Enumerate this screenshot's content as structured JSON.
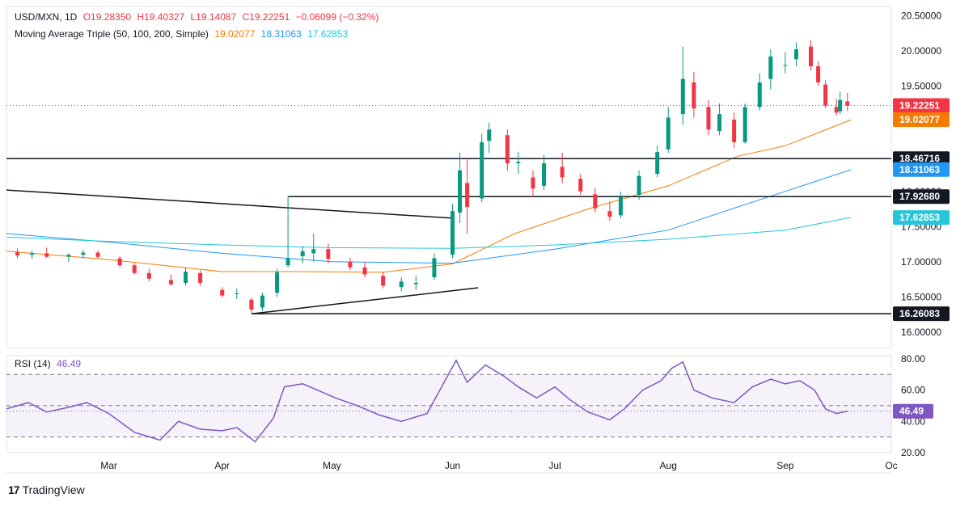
{
  "header": {
    "symbol": "USD/MXN, 1D",
    "open": "O19.28350",
    "high": "H19.40327",
    "low": "L19.14087",
    "close": "C19.22251",
    "change": "−0.06099 (−0.32%)",
    "ma_title": "Moving Average Triple (50, 100, 200, Simple)",
    "ma50_value": "19.02077",
    "ma100_value": "18.31063",
    "ma200_value": "17.62853"
  },
  "rsi_header": {
    "title": "RSI (14)",
    "value": "46.49"
  },
  "brand": {
    "name": "TradingView",
    "logo_text": "17"
  },
  "colors": {
    "up": "#089981",
    "down": "#f23645",
    "ma50": "#f57c00",
    "ma100": "#2196f3",
    "ma200": "#26c6da",
    "rsi": "#7e57c2",
    "level_line": "#131722"
  },
  "chart_data": [
    {
      "type": "candlestick",
      "title": "USD/MXN, 1D",
      "y_ticks": [
        16.0,
        16.5,
        17.0,
        17.5,
        18.0,
        18.5,
        19.0,
        19.5,
        20.0,
        20.5
      ],
      "y_tick_labels": [
        "16.00000",
        "16.50000",
        "17.00000",
        "17.50000",
        "18.00000",
        "18.50000",
        "19.00000",
        "19.50000",
        "20.00000",
        "20.50000"
      ],
      "ylim": [
        15.78,
        20.63
      ],
      "x_labels": [
        "Mar",
        "Apr",
        "May",
        "Jun",
        "Jul",
        "Aug",
        "Sep",
        "Oc"
      ],
      "x_label_dates": [
        "2024-03-01",
        "2024-04-01",
        "2024-05-01",
        "2024-06-03",
        "2024-07-01",
        "2024-08-01",
        "2024-09-02",
        "2024-10-01"
      ],
      "x_range": [
        "2024-02-02",
        "2024-10-01"
      ],
      "candles": [
        {
          "d": "2024-02-05",
          "o": 17.14,
          "h": 17.19,
          "l": 17.05,
          "c": 17.09
        },
        {
          "d": "2024-02-09",
          "o": 17.1,
          "h": 17.16,
          "l": 17.04,
          "c": 17.12
        },
        {
          "d": "2024-02-13",
          "o": 17.12,
          "h": 17.2,
          "l": 17.06,
          "c": 17.07
        },
        {
          "d": "2024-02-19",
          "o": 17.07,
          "h": 17.12,
          "l": 17.0,
          "c": 17.1
        },
        {
          "d": "2024-02-23",
          "o": 17.1,
          "h": 17.17,
          "l": 17.05,
          "c": 17.13
        },
        {
          "d": "2024-02-27",
          "o": 17.13,
          "h": 17.16,
          "l": 17.04,
          "c": 17.07
        },
        {
          "d": "2024-03-04",
          "o": 17.05,
          "h": 17.08,
          "l": 16.92,
          "c": 16.95
        },
        {
          "d": "2024-03-08",
          "o": 16.95,
          "h": 16.98,
          "l": 16.82,
          "c": 16.84
        },
        {
          "d": "2024-03-12",
          "o": 16.84,
          "h": 16.9,
          "l": 16.72,
          "c": 16.76
        },
        {
          "d": "2024-03-18",
          "o": 16.74,
          "h": 16.82,
          "l": 16.66,
          "c": 16.68
        },
        {
          "d": "2024-03-22",
          "o": 16.7,
          "h": 16.92,
          "l": 16.66,
          "c": 16.86
        },
        {
          "d": "2024-03-26",
          "o": 16.84,
          "h": 16.88,
          "l": 16.66,
          "c": 16.7
        },
        {
          "d": "2024-04-01",
          "o": 16.6,
          "h": 16.64,
          "l": 16.49,
          "c": 16.52
        },
        {
          "d": "2024-04-05",
          "o": 16.54,
          "h": 16.62,
          "l": 16.47,
          "c": 16.55
        },
        {
          "d": "2024-04-09",
          "o": 16.46,
          "h": 16.49,
          "l": 16.26,
          "c": 16.32
        },
        {
          "d": "2024-04-12",
          "o": 16.35,
          "h": 16.56,
          "l": 16.3,
          "c": 16.52
        },
        {
          "d": "2024-04-16",
          "o": 16.56,
          "h": 16.9,
          "l": 16.5,
          "c": 16.85
        },
        {
          "d": "2024-04-19",
          "o": 16.95,
          "h": 17.93,
          "l": 16.92,
          "c": 17.05
        },
        {
          "d": "2024-04-23",
          "o": 17.08,
          "h": 17.22,
          "l": 16.98,
          "c": 17.15
        },
        {
          "d": "2024-04-26",
          "o": 17.12,
          "h": 17.4,
          "l": 17.0,
          "c": 17.18
        },
        {
          "d": "2024-04-30",
          "o": 17.18,
          "h": 17.26,
          "l": 16.98,
          "c": 17.04
        },
        {
          "d": "2024-05-06",
          "o": 17.0,
          "h": 17.06,
          "l": 16.88,
          "c": 16.92
        },
        {
          "d": "2024-05-10",
          "o": 16.92,
          "h": 17.0,
          "l": 16.78,
          "c": 16.82
        },
        {
          "d": "2024-05-15",
          "o": 16.8,
          "h": 16.86,
          "l": 16.62,
          "c": 16.66
        },
        {
          "d": "2024-05-20",
          "o": 16.64,
          "h": 16.78,
          "l": 16.58,
          "c": 16.72
        },
        {
          "d": "2024-05-24",
          "o": 16.68,
          "h": 16.8,
          "l": 16.6,
          "c": 16.7
        },
        {
          "d": "2024-05-29",
          "o": 16.78,
          "h": 17.12,
          "l": 16.74,
          "c": 17.05
        },
        {
          "d": "2024-06-03",
          "o": 17.1,
          "h": 17.82,
          "l": 17.05,
          "c": 17.72
        },
        {
          "d": "2024-06-05",
          "o": 17.7,
          "h": 18.55,
          "l": 17.55,
          "c": 18.3
        },
        {
          "d": "2024-06-07",
          "o": 18.12,
          "h": 18.48,
          "l": 17.4,
          "c": 17.78
        },
        {
          "d": "2024-06-11",
          "o": 17.9,
          "h": 18.82,
          "l": 17.85,
          "c": 18.7
        },
        {
          "d": "2024-06-13",
          "o": 18.72,
          "h": 18.98,
          "l": 18.55,
          "c": 18.88
        },
        {
          "d": "2024-06-18",
          "o": 18.8,
          "h": 18.88,
          "l": 18.3,
          "c": 18.4
        },
        {
          "d": "2024-06-21",
          "o": 18.4,
          "h": 18.56,
          "l": 18.25,
          "c": 18.42
        },
        {
          "d": "2024-06-25",
          "o": 18.2,
          "h": 18.3,
          "l": 17.92,
          "c": 18.04
        },
        {
          "d": "2024-06-28",
          "o": 18.08,
          "h": 18.52,
          "l": 18.02,
          "c": 18.4
        },
        {
          "d": "2024-07-03",
          "o": 18.35,
          "h": 18.55,
          "l": 18.12,
          "c": 18.2
        },
        {
          "d": "2024-07-08",
          "o": 18.18,
          "h": 18.25,
          "l": 17.95,
          "c": 18.0
        },
        {
          "d": "2024-07-12",
          "o": 17.96,
          "h": 18.05,
          "l": 17.7,
          "c": 17.76
        },
        {
          "d": "2024-07-16",
          "o": 17.72,
          "h": 17.86,
          "l": 17.58,
          "c": 17.64
        },
        {
          "d": "2024-07-19",
          "o": 17.66,
          "h": 18.0,
          "l": 17.62,
          "c": 17.92
        },
        {
          "d": "2024-07-24",
          "o": 17.95,
          "h": 18.3,
          "l": 17.88,
          "c": 18.22
        },
        {
          "d": "2024-07-29",
          "o": 18.25,
          "h": 18.65,
          "l": 18.2,
          "c": 18.56
        },
        {
          "d": "2024-08-01",
          "o": 18.6,
          "h": 19.2,
          "l": 18.55,
          "c": 19.05
        },
        {
          "d": "2024-08-05",
          "o": 19.1,
          "h": 20.06,
          "l": 18.95,
          "c": 19.6
        },
        {
          "d": "2024-08-08",
          "o": 19.55,
          "h": 19.7,
          "l": 19.05,
          "c": 19.18
        },
        {
          "d": "2024-08-12",
          "o": 19.2,
          "h": 19.3,
          "l": 18.8,
          "c": 18.88
        },
        {
          "d": "2024-08-15",
          "o": 18.86,
          "h": 19.25,
          "l": 18.8,
          "c": 19.1
        },
        {
          "d": "2024-08-19",
          "o": 19.02,
          "h": 19.12,
          "l": 18.62,
          "c": 18.7
        },
        {
          "d": "2024-08-22",
          "o": 18.7,
          "h": 19.25,
          "l": 18.68,
          "c": 19.2
        },
        {
          "d": "2024-08-26",
          "o": 19.2,
          "h": 19.68,
          "l": 19.15,
          "c": 19.55
        },
        {
          "d": "2024-08-29",
          "o": 19.6,
          "h": 20.02,
          "l": 19.45,
          "c": 19.92
        },
        {
          "d": "2024-09-02",
          "o": 19.8,
          "h": 19.98,
          "l": 19.68,
          "c": 19.8
        },
        {
          "d": "2024-09-05",
          "o": 19.88,
          "h": 20.12,
          "l": 19.78,
          "c": 20.02
        },
        {
          "d": "2024-09-09",
          "o": 20.06,
          "h": 20.15,
          "l": 19.72,
          "c": 19.78
        },
        {
          "d": "2024-09-11",
          "o": 19.78,
          "h": 19.85,
          "l": 19.5,
          "c": 19.55
        },
        {
          "d": "2024-09-13",
          "o": 19.52,
          "h": 19.58,
          "l": 19.18,
          "c": 19.22
        },
        {
          "d": "2024-09-16",
          "o": 19.2,
          "h": 19.32,
          "l": 19.08,
          "c": 19.12
        },
        {
          "d": "2024-09-17",
          "o": 19.14,
          "h": 19.42,
          "l": 19.1,
          "c": 19.3
        },
        {
          "d": "2024-09-19",
          "o": 19.28,
          "h": 19.4,
          "l": 19.14,
          "c": 19.22
        }
      ],
      "series": [
        {
          "name": "50",
          "values": [
            {
              "d": "2024-02-02",
              "v": 17.15
            },
            {
              "d": "2024-03-01",
              "v": 17.03
            },
            {
              "d": "2024-04-01",
              "v": 16.86
            },
            {
              "d": "2024-04-20",
              "v": 16.86
            },
            {
              "d": "2024-05-15",
              "v": 16.85
            },
            {
              "d": "2024-06-03",
              "v": 16.97
            },
            {
              "d": "2024-06-20",
              "v": 17.4
            },
            {
              "d": "2024-07-10",
              "v": 17.75
            },
            {
              "d": "2024-08-01",
              "v": 18.08
            },
            {
              "d": "2024-08-20",
              "v": 18.5
            },
            {
              "d": "2024-09-02",
              "v": 18.65
            },
            {
              "d": "2024-09-20",
              "v": 19.02
            }
          ]
        },
        {
          "name": "100",
          "values": [
            {
              "d": "2024-02-02",
              "v": 17.4
            },
            {
              "d": "2024-03-01",
              "v": 17.28
            },
            {
              "d": "2024-04-01",
              "v": 17.12
            },
            {
              "d": "2024-05-01",
              "v": 17.0
            },
            {
              "d": "2024-06-03",
              "v": 16.98
            },
            {
              "d": "2024-07-01",
              "v": 17.18
            },
            {
              "d": "2024-08-01",
              "v": 17.45
            },
            {
              "d": "2024-08-20",
              "v": 17.78
            },
            {
              "d": "2024-09-02",
              "v": 18.0
            },
            {
              "d": "2024-09-20",
              "v": 18.31
            }
          ]
        },
        {
          "name": "200",
          "values": [
            {
              "d": "2024-02-02",
              "v": 17.35
            },
            {
              "d": "2024-03-01",
              "v": 17.29
            },
            {
              "d": "2024-04-01",
              "v": 17.24
            },
            {
              "d": "2024-05-01",
              "v": 17.2
            },
            {
              "d": "2024-06-03",
              "v": 17.19
            },
            {
              "d": "2024-07-01",
              "v": 17.24
            },
            {
              "d": "2024-08-01",
              "v": 17.32
            },
            {
              "d": "2024-09-02",
              "v": 17.45
            },
            {
              "d": "2024-09-20",
              "v": 17.63
            }
          ]
        }
      ],
      "horizontal_levels": [
        {
          "value": 18.46716,
          "label": "18.46716",
          "from": "2024-02-02"
        },
        {
          "value": 17.9268,
          "label": "17.92680",
          "from": "2024-04-19"
        },
        {
          "value": 16.26083,
          "label": "16.26083",
          "from": "2024-04-09"
        }
      ],
      "trendlines": [
        {
          "from": {
            "d": "2024-02-02",
            "v": 18.02
          },
          "to": {
            "d": "2024-06-03",
            "v": 17.62
          }
        },
        {
          "from": {
            "d": "2024-04-09",
            "v": 16.26
          },
          "to": {
            "d": "2024-06-10",
            "v": 16.63
          }
        }
      ],
      "last_price": {
        "value": 19.22251,
        "label": "19.22251"
      },
      "price_labels": [
        {
          "value": 19.22251,
          "label": "19.22251",
          "color": "#f23645"
        },
        {
          "value": 19.02077,
          "label": "19.02077",
          "color": "#f57c00"
        },
        {
          "value": 18.46716,
          "label": "18.46716",
          "color": "#131722"
        },
        {
          "value": 18.31063,
          "label": "18.31063",
          "color": "#2196f3"
        },
        {
          "value": 17.9268,
          "label": "17.92680",
          "color": "#131722"
        },
        {
          "value": 17.62853,
          "label": "17.62853",
          "color": "#26c6da"
        },
        {
          "value": 16.26083,
          "label": "16.26083",
          "color": "#131722"
        }
      ]
    },
    {
      "type": "line",
      "title": "RSI (14)",
      "ylim": [
        20,
        82
      ],
      "y_ticks": [
        20,
        40,
        60,
        80
      ],
      "y_tick_labels": [
        "20.00",
        "40.00",
        "60.00",
        "80.00"
      ],
      "bands": {
        "upper": 70,
        "middle": 50,
        "lower": 30
      },
      "value_label": "46.49",
      "series": [
        {
          "name": "RSI",
          "values": [
            {
              "d": "2024-02-02",
              "v": 48
            },
            {
              "d": "2024-02-08",
              "v": 52
            },
            {
              "d": "2024-02-13",
              "v": 46
            },
            {
              "d": "2024-02-19",
              "v": 49
            },
            {
              "d": "2024-02-24",
              "v": 52
            },
            {
              "d": "2024-03-01",
              "v": 45
            },
            {
              "d": "2024-03-08",
              "v": 33
            },
            {
              "d": "2024-03-15",
              "v": 28
            },
            {
              "d": "2024-03-20",
              "v": 40
            },
            {
              "d": "2024-03-26",
              "v": 35
            },
            {
              "d": "2024-04-01",
              "v": 34
            },
            {
              "d": "2024-04-05",
              "v": 36
            },
            {
              "d": "2024-04-10",
              "v": 27
            },
            {
              "d": "2024-04-15",
              "v": 42
            },
            {
              "d": "2024-04-18",
              "v": 62
            },
            {
              "d": "2024-04-23",
              "v": 64
            },
            {
              "d": "2024-04-27",
              "v": 60
            },
            {
              "d": "2024-05-02",
              "v": 55
            },
            {
              "d": "2024-05-08",
              "v": 50
            },
            {
              "d": "2024-05-14",
              "v": 44
            },
            {
              "d": "2024-05-20",
              "v": 40
            },
            {
              "d": "2024-05-27",
              "v": 45
            },
            {
              "d": "2024-05-31",
              "v": 62
            },
            {
              "d": "2024-06-04",
              "v": 79
            },
            {
              "d": "2024-06-07",
              "v": 65
            },
            {
              "d": "2024-06-12",
              "v": 76
            },
            {
              "d": "2024-06-17",
              "v": 69
            },
            {
              "d": "2024-06-21",
              "v": 62
            },
            {
              "d": "2024-06-26",
              "v": 55
            },
            {
              "d": "2024-07-01",
              "v": 62
            },
            {
              "d": "2024-07-05",
              "v": 54
            },
            {
              "d": "2024-07-10",
              "v": 46
            },
            {
              "d": "2024-07-16",
              "v": 41
            },
            {
              "d": "2024-07-20",
              "v": 48
            },
            {
              "d": "2024-07-25",
              "v": 60
            },
            {
              "d": "2024-07-30",
              "v": 66
            },
            {
              "d": "2024-08-02",
              "v": 74
            },
            {
              "d": "2024-08-05",
              "v": 78
            },
            {
              "d": "2024-08-08",
              "v": 60
            },
            {
              "d": "2024-08-13",
              "v": 55
            },
            {
              "d": "2024-08-19",
              "v": 52
            },
            {
              "d": "2024-08-24",
              "v": 62
            },
            {
              "d": "2024-08-29",
              "v": 67
            },
            {
              "d": "2024-09-02",
              "v": 64
            },
            {
              "d": "2024-09-06",
              "v": 66
            },
            {
              "d": "2024-09-10",
              "v": 60
            },
            {
              "d": "2024-09-13",
              "v": 48
            },
            {
              "d": "2024-09-16",
              "v": 45
            },
            {
              "d": "2024-09-19",
              "v": 46.49
            }
          ]
        }
      ]
    }
  ]
}
